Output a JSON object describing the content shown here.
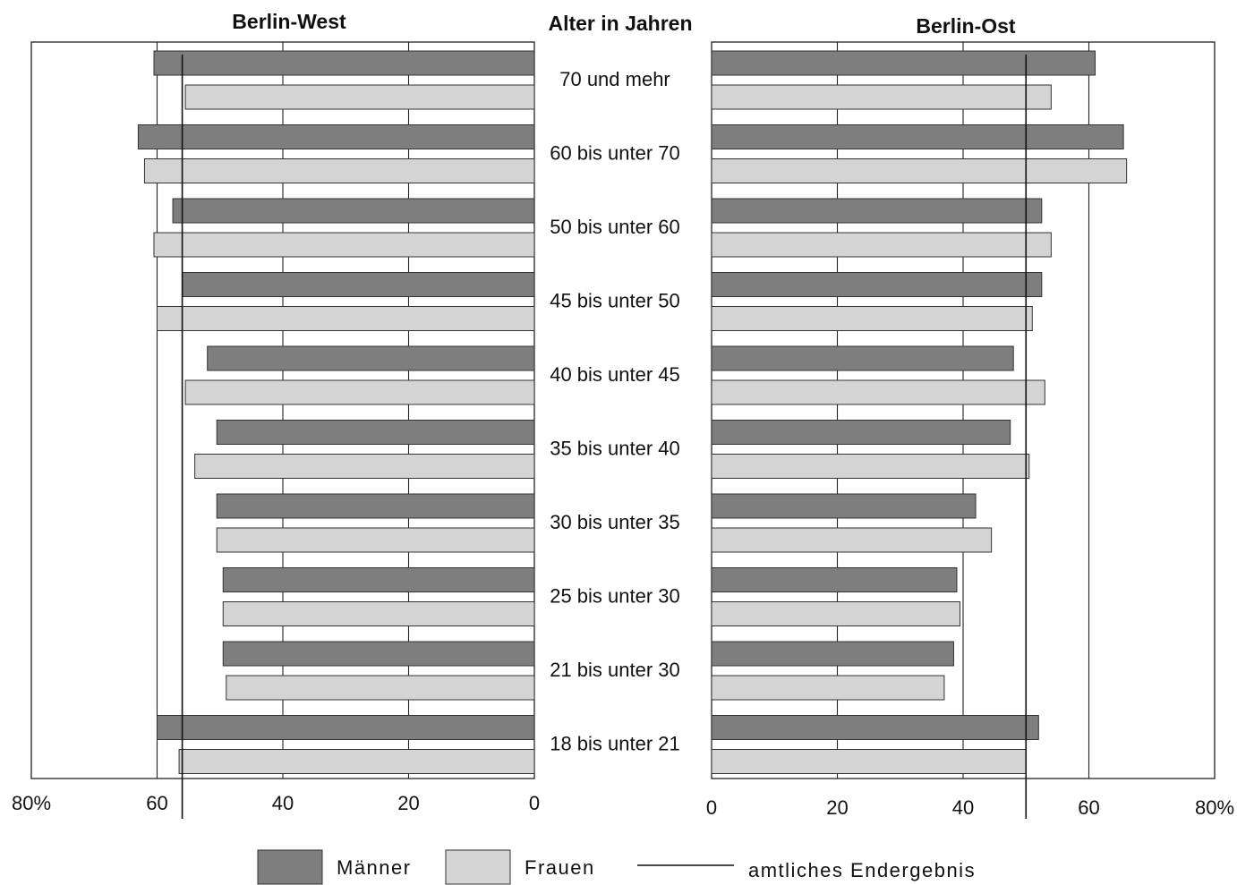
{
  "chart_data": {
    "type": "bar",
    "orientation": "horizontal",
    "center_header": "Alter in Jahren",
    "categories": [
      "70 und mehr",
      "60 bis unter 70",
      "50 bis unter 60",
      "45 bis unter 50",
      "40 bis unter 45",
      "35 bis unter 40",
      "30 bis unter 35",
      "25 bis unter 30",
      "21 bis unter 30",
      "18 bis unter 21"
    ],
    "panels": [
      {
        "title": "Berlin-West",
        "direction": "left",
        "xlim": [
          0,
          80
        ],
        "ticks": [
          "80%",
          "60",
          "40",
          "20",
          "0"
        ],
        "tick_values": [
          80,
          60,
          40,
          20,
          0
        ],
        "official_result": 56,
        "series": [
          {
            "name": "Männer",
            "values": [
              60.5,
              63,
              57.5,
              56,
              52,
              50.5,
              50.5,
              49.5,
              49.5,
              60
            ]
          },
          {
            "name": "Frauen",
            "values": [
              55.5,
              62,
              60.5,
              60,
              55.5,
              54,
              50.5,
              49.5,
              49,
              56.5
            ]
          }
        ]
      },
      {
        "title": "Berlin-Ost",
        "direction": "right",
        "xlim": [
          0,
          80
        ],
        "ticks": [
          "0",
          "20",
          "40",
          "60",
          "80%"
        ],
        "tick_values": [
          0,
          20,
          40,
          60,
          80
        ],
        "official_result": 50,
        "series": [
          {
            "name": "Männer",
            "values": [
              61,
              65.5,
              52.5,
              52.5,
              48,
              47.5,
              42,
              39,
              38.5,
              52
            ]
          },
          {
            "name": "Frauen",
            "values": [
              54,
              66,
              54,
              51,
              53,
              50.5,
              44.5,
              39.5,
              37,
              50
            ]
          }
        ]
      }
    ],
    "legend": [
      {
        "name": "Männer",
        "swatch": "dark"
      },
      {
        "name": "Frauen",
        "swatch": "light"
      },
      {
        "name": "amtliches Endergebnis",
        "swatch": "line"
      }
    ],
    "colors": {
      "maenner": "#7e7e7e",
      "frauen": "#d4d4d4"
    }
  }
}
